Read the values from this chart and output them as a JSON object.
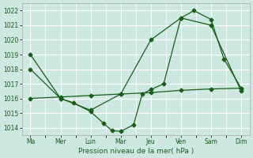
{
  "xlabel": "Pression niveau de la mer( hPa )",
  "bg_color": "#cce8e0",
  "grid_color": "#ffffff",
  "line_color": "#1a5c1a",
  "xlabels": [
    "Ma",
    "Mer",
    "Lun",
    "Mar",
    "Jeu",
    "Ven",
    "Sam",
    "Dim"
  ],
  "ylim": [
    1013.5,
    1022.5
  ],
  "yticks": [
    1014,
    1015,
    1016,
    1017,
    1018,
    1019,
    1020,
    1021,
    1022
  ],
  "series1_x": [
    0,
    7,
    14,
    21,
    28,
    35,
    42,
    49
  ],
  "series1_y": [
    1019.0,
    1016.0,
    1015.2,
    1016.3,
    1020.0,
    1021.5,
    1021.0,
    1016.5
  ],
  "series2_x": [
    0,
    7,
    10,
    14,
    17,
    19,
    21,
    24,
    26,
    28,
    31,
    35,
    38,
    42,
    45,
    49
  ],
  "series2_y": [
    1018.0,
    1016.0,
    1015.7,
    1015.1,
    1014.3,
    1013.8,
    1013.75,
    1014.2,
    1016.3,
    1016.6,
    1017.0,
    1021.5,
    1022.0,
    1021.4,
    1018.7,
    1016.7
  ],
  "series3_x": [
    0,
    7,
    14,
    21,
    28,
    35,
    42,
    49
  ],
  "series3_y": [
    1016.0,
    1016.1,
    1016.2,
    1016.3,
    1016.4,
    1016.55,
    1016.65,
    1016.7
  ]
}
